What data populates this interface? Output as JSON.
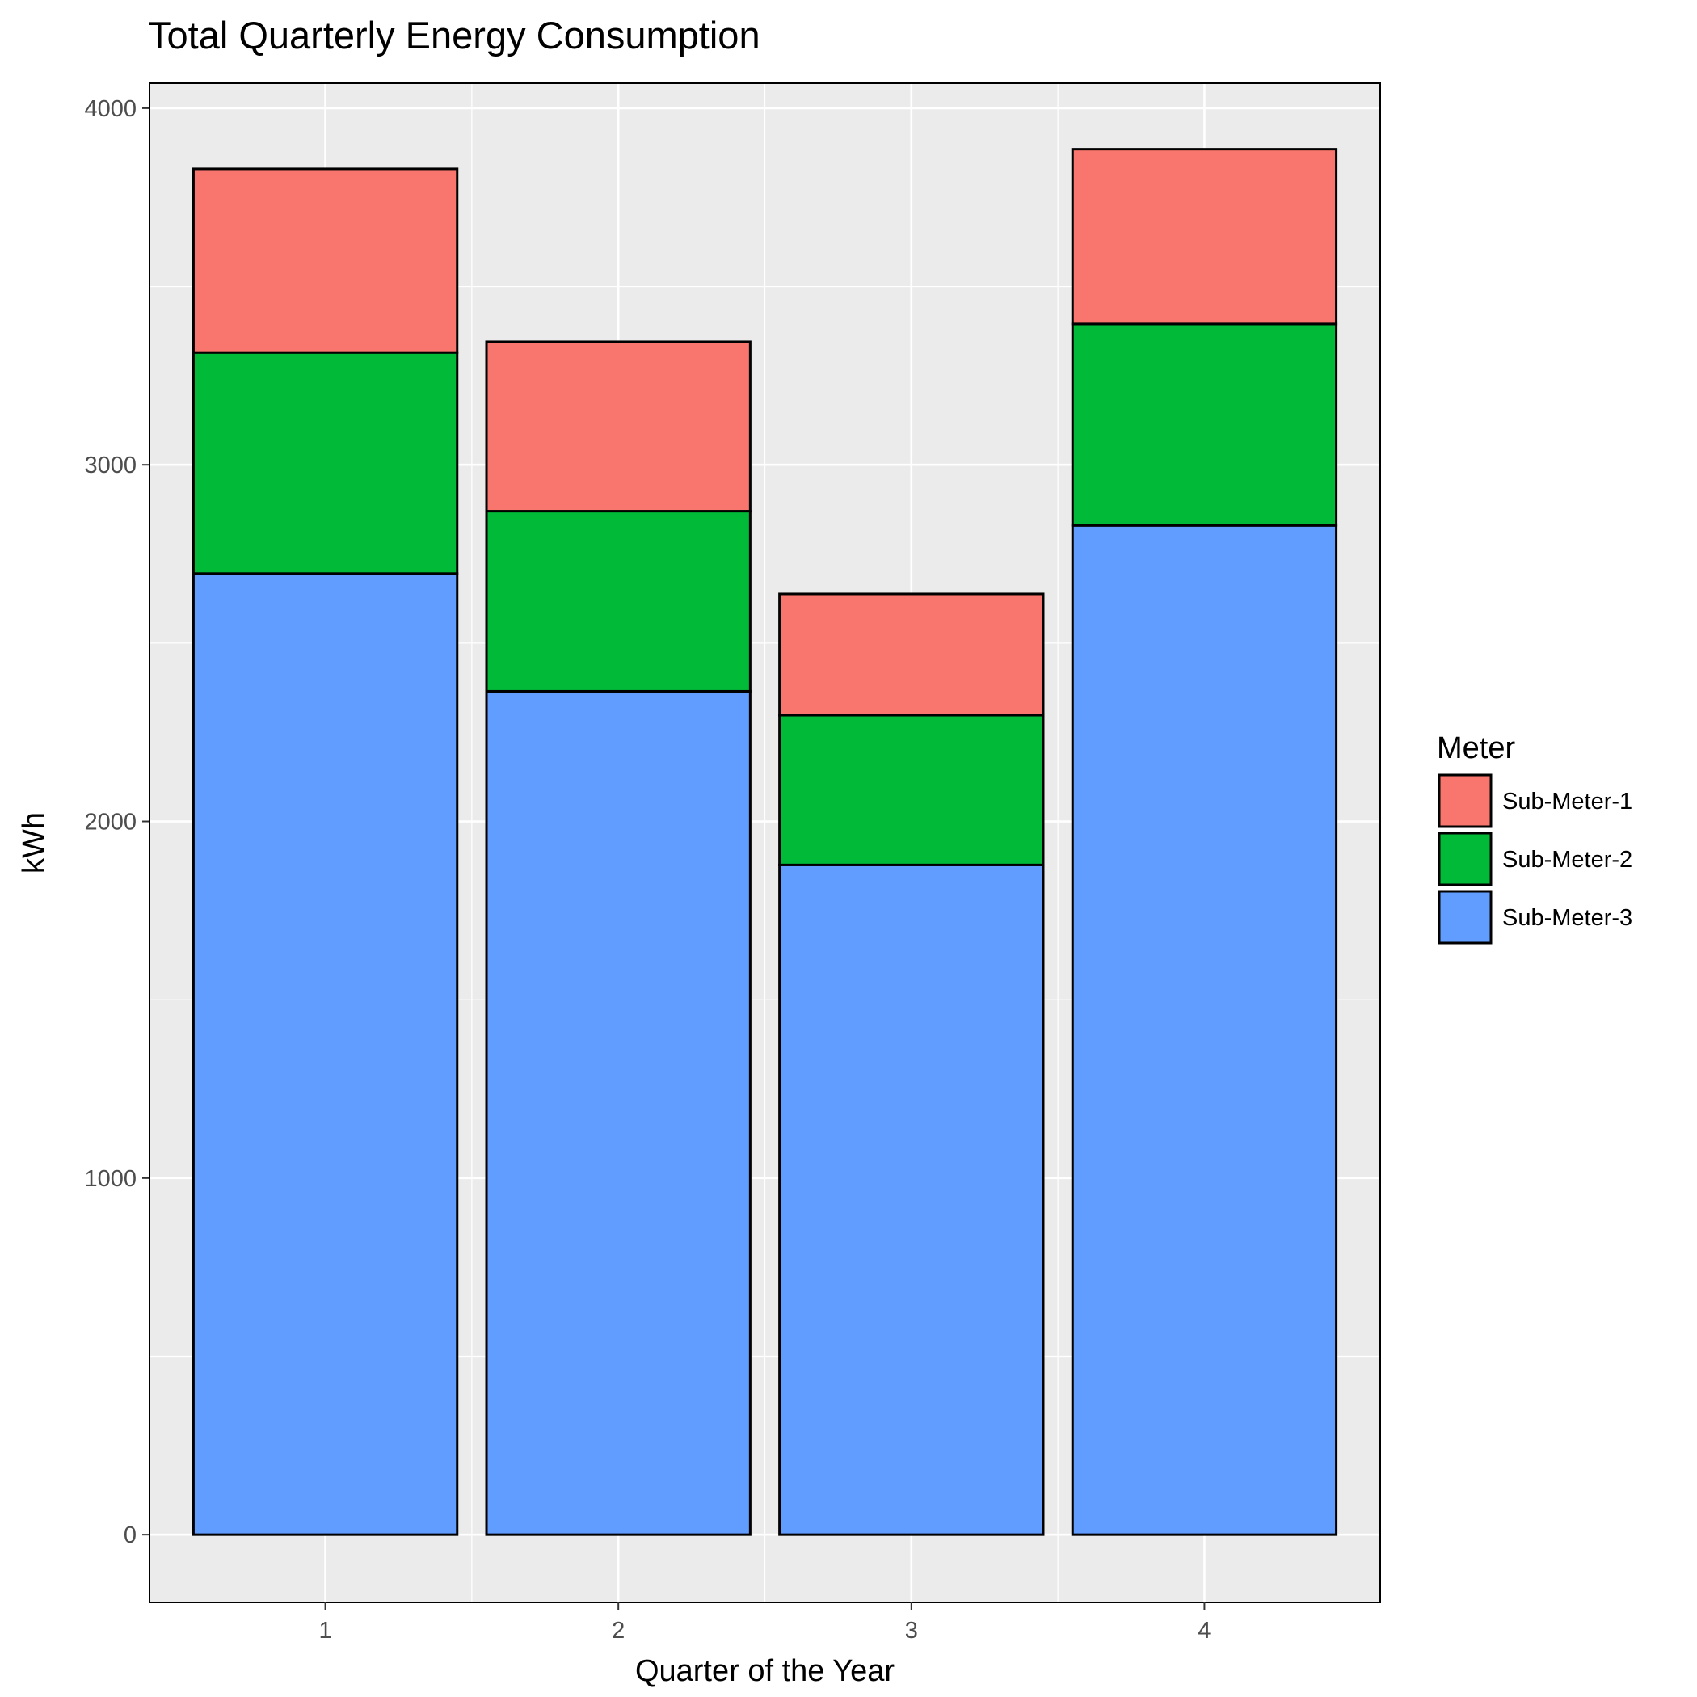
{
  "chart_data": {
    "type": "bar",
    "stacked": true,
    "title": "Total Quarterly Energy Consumption",
    "xlabel": "Quarter of the Year",
    "ylabel": "kWh",
    "categories": [
      "1",
      "2",
      "3",
      "4"
    ],
    "ylim": [
      -190,
      4070
    ],
    "yticks": [
      0,
      1000,
      2000,
      3000,
      4000
    ],
    "yticks_labels": [
      "0",
      "1000",
      "2000",
      "3000",
      "4000"
    ],
    "grid": true,
    "legend": {
      "title": "Meter",
      "position": "right"
    },
    "series": [
      {
        "name": "Sub-Meter-3",
        "color": "#619CFF",
        "values": [
          2695,
          2365,
          1878,
          2830
        ]
      },
      {
        "name": "Sub-Meter-2",
        "color": "#00BA38",
        "values": [
          620,
          505,
          420,
          565
        ]
      },
      {
        "name": "Sub-Meter-1",
        "color": "#F8766D",
        "values": [
          515,
          475,
          340,
          490
        ]
      }
    ],
    "legend_order": [
      "Sub-Meter-1",
      "Sub-Meter-2",
      "Sub-Meter-3"
    ],
    "background_color": "#EBEBEB",
    "gridline_color": "#FFFFFF"
  }
}
